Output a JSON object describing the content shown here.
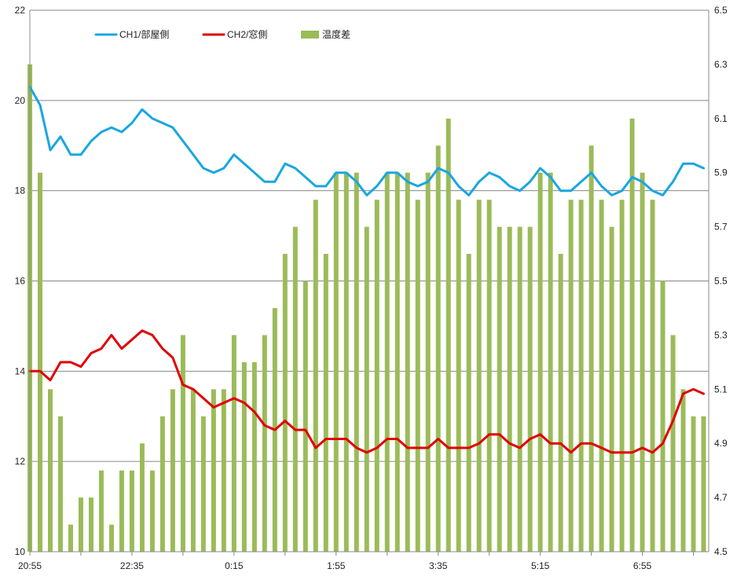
{
  "chart_data": {
    "type": "bar+line",
    "title": "",
    "grid": true,
    "legend_position": "top-left",
    "x_ticks": [
      "20:55",
      "22:35",
      "0:15",
      "1:55",
      "3:35",
      "5:15",
      "6:55"
    ],
    "y_left": {
      "min": 10,
      "max": 22,
      "ticks": [
        10,
        12,
        14,
        16,
        18,
        20,
        22
      ]
    },
    "y_right": {
      "min": 4.5,
      "max": 6.5,
      "ticks": [
        "4.5",
        "4.7",
        "4.9",
        "5.1",
        "5.3",
        "5.5",
        "5.7",
        "5.9",
        "6.1",
        "6.3",
        "6.5"
      ]
    },
    "series": [
      {
        "name": "CH1/部屋側",
        "kind": "line",
        "axis": "left",
        "color": "#1aa6e0",
        "values": [
          20.3,
          19.9,
          18.9,
          19.2,
          18.8,
          18.8,
          19.1,
          19.3,
          19.4,
          19.3,
          19.5,
          19.8,
          19.6,
          19.5,
          19.4,
          19.1,
          18.8,
          18.5,
          18.4,
          18.5,
          18.8,
          18.6,
          18.4,
          18.2,
          18.2,
          18.6,
          18.5,
          18.3,
          18.1,
          18.1,
          18.4,
          18.4,
          18.2,
          17.9,
          18.1,
          18.4,
          18.4,
          18.2,
          18.1,
          18.2,
          18.5,
          18.4,
          18.1,
          17.9,
          18.2,
          18.4,
          18.3,
          18.1,
          18.0,
          18.2,
          18.5,
          18.3,
          18.0,
          18.0,
          18.2,
          18.4,
          18.1,
          17.9,
          18.0,
          18.3,
          18.2,
          18.0,
          17.9,
          18.2,
          18.6,
          18.6,
          18.5
        ]
      },
      {
        "name": "CH2/窓側",
        "kind": "line",
        "axis": "left",
        "color": "#e00000",
        "values": [
          14.0,
          14.0,
          13.8,
          14.2,
          14.2,
          14.1,
          14.4,
          14.5,
          14.8,
          14.5,
          14.7,
          14.9,
          14.8,
          14.5,
          14.3,
          13.7,
          13.6,
          13.4,
          13.2,
          13.3,
          13.4,
          13.3,
          13.1,
          12.8,
          12.7,
          12.9,
          12.7,
          12.7,
          12.3,
          12.5,
          12.5,
          12.5,
          12.3,
          12.2,
          12.3,
          12.5,
          12.5,
          12.3,
          12.3,
          12.3,
          12.5,
          12.3,
          12.3,
          12.3,
          12.4,
          12.6,
          12.6,
          12.4,
          12.3,
          12.5,
          12.6,
          12.4,
          12.4,
          12.2,
          12.4,
          12.4,
          12.3,
          12.2,
          12.2,
          12.2,
          12.3,
          12.2,
          12.4,
          12.9,
          13.5,
          13.6,
          13.5
        ]
      },
      {
        "name": "温度差",
        "kind": "bar",
        "axis": "right",
        "color": "#9bbb59",
        "values": [
          6.3,
          5.9,
          5.1,
          5.0,
          4.6,
          4.7,
          4.7,
          4.8,
          4.6,
          4.8,
          4.8,
          4.9,
          4.8,
          5.0,
          5.1,
          5.3,
          5.1,
          5.0,
          5.1,
          5.1,
          5.3,
          5.2,
          5.2,
          5.3,
          5.4,
          5.6,
          5.7,
          5.5,
          5.8,
          5.6,
          5.9,
          5.9,
          5.9,
          5.7,
          5.8,
          5.9,
          5.9,
          5.9,
          5.8,
          5.9,
          6.0,
          6.1,
          5.8,
          5.6,
          5.8,
          5.8,
          5.7,
          5.7,
          5.7,
          5.7,
          5.9,
          5.9,
          5.6,
          5.8,
          5.8,
          6.0,
          5.8,
          5.7,
          5.8,
          6.1,
          5.9,
          5.8,
          5.5,
          5.3,
          5.1,
          5.0,
          5.0
        ]
      }
    ]
  }
}
